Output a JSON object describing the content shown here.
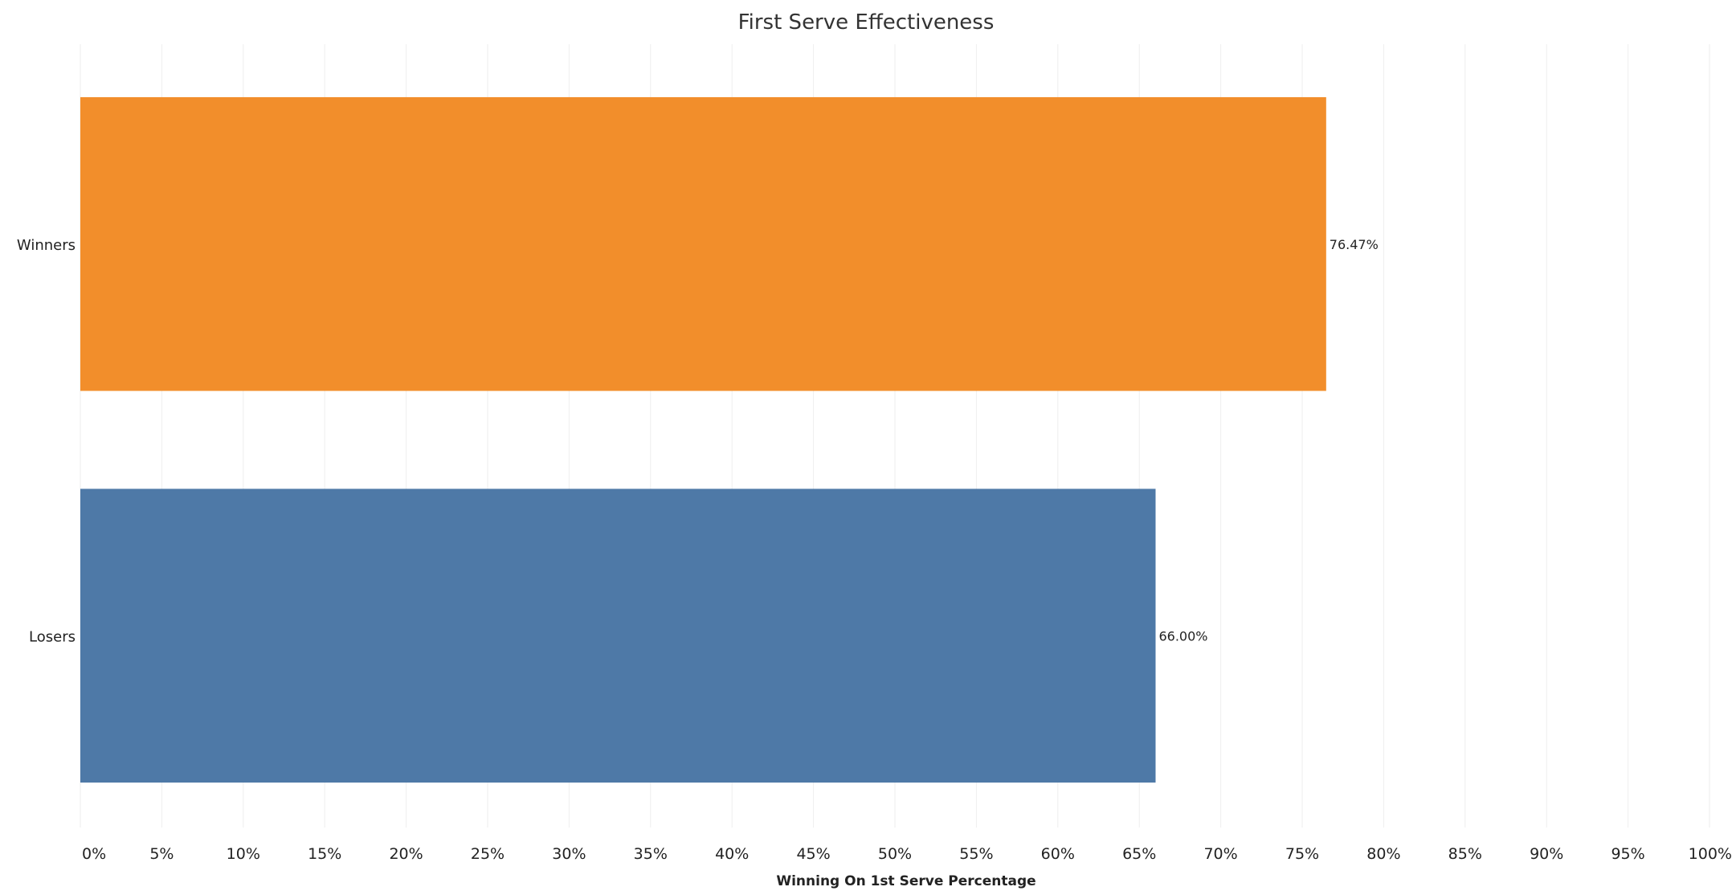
{
  "chart_data": {
    "type": "bar",
    "orientation": "horizontal",
    "title": "First Serve Effectiveness",
    "xlabel": "Winning On 1st Serve Percentage",
    "ylabel": "",
    "categories": [
      "Winners",
      "Losers"
    ],
    "values": [
      76.47,
      66.0
    ],
    "data_labels": [
      "76.47%",
      "66.00%"
    ],
    "colors": [
      "#f28e2b",
      "#4e79a7"
    ],
    "xlim": [
      0,
      100
    ],
    "x_ticks": [
      "0%",
      "5%",
      "10%",
      "15%",
      "20%",
      "25%",
      "30%",
      "35%",
      "40%",
      "45%",
      "50%",
      "55%",
      "60%",
      "65%",
      "70%",
      "75%",
      "80%",
      "85%",
      "90%",
      "95%",
      "100%"
    ],
    "grid": "vertical",
    "legend": "none"
  }
}
